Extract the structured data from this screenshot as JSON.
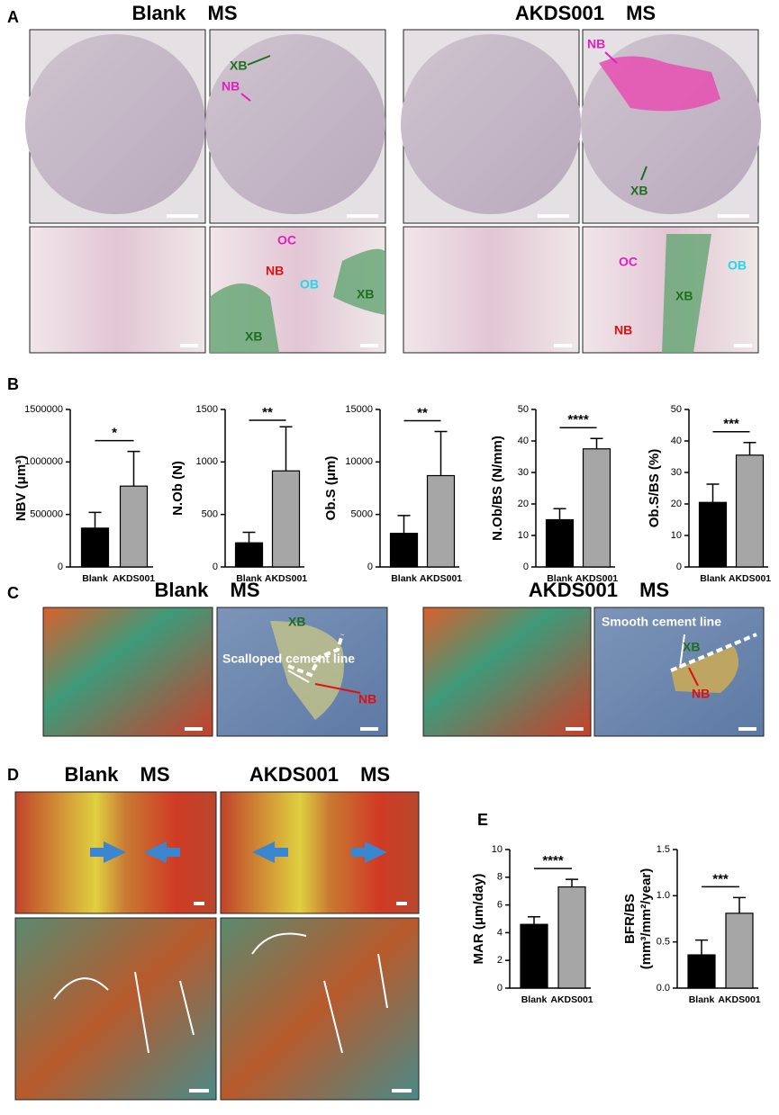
{
  "panel_labels": [
    "A",
    "B",
    "C",
    "D",
    "E"
  ],
  "titles": [
    "Blank MS",
    "AKDS001 MS",
    "Blank MS",
    "AKDS001 MS",
    "Blank MS",
    "AKDS001 MS"
  ],
  "annotations": [
    "XB",
    "NB",
    "NB",
    "XB",
    "OC",
    "NB",
    "OB",
    "XB",
    "XB",
    "OC",
    "OB",
    "XB",
    "NB",
    "XB",
    "Scalloped cement line",
    "NB",
    "Smooth cement line",
    "XB",
    "NB"
  ],
  "chart_data": [
    {
      "type": "bar",
      "ylabel": "NBV (μm³)",
      "categories": [
        "Blank",
        "AKDS001"
      ],
      "values": [
        370000,
        770000
      ],
      "errors": [
        150000,
        330000
      ],
      "colors": [
        "#000000",
        "#a6a6a6"
      ],
      "ylim": [
        0,
        1500000
      ],
      "yticks": [
        0,
        500000,
        1000000,
        1500000
      ],
      "significance": "*"
    },
    {
      "type": "bar",
      "ylabel": "N.Ob (N)",
      "categories": [
        "Blank",
        "AKDS001"
      ],
      "values": [
        230,
        915
      ],
      "errors": [
        100,
        420
      ],
      "colors": [
        "#000000",
        "#a6a6a6"
      ],
      "ylim": [
        0,
        1500
      ],
      "yticks": [
        0,
        500,
        1000,
        1500
      ],
      "significance": "**"
    },
    {
      "type": "bar",
      "ylabel": "Ob.S (μm)",
      "categories": [
        "Blank",
        "AKDS001"
      ],
      "values": [
        3200,
        8700
      ],
      "errors": [
        1700,
        4200
      ],
      "colors": [
        "#000000",
        "#a6a6a6"
      ],
      "ylim": [
        0,
        15000
      ],
      "yticks": [
        0,
        5000,
        10000,
        15000
      ],
      "significance": "**"
    },
    {
      "type": "bar",
      "ylabel": "N.Ob/BS (N/mm)",
      "categories": [
        "Blank",
        "AKDS001"
      ],
      "values": [
        15,
        37.5
      ],
      "errors": [
        3.5,
        3.3
      ],
      "colors": [
        "#000000",
        "#a6a6a6"
      ],
      "ylim": [
        0,
        50
      ],
      "yticks": [
        0,
        10,
        20,
        30,
        40,
        50
      ],
      "significance": "****"
    },
    {
      "type": "bar",
      "ylabel": "Ob.S/BS (%)",
      "categories": [
        "Blank",
        "AKDS001"
      ],
      "values": [
        20.5,
        35.5
      ],
      "errors": [
        5.8,
        4
      ],
      "colors": [
        "#000000",
        "#a6a6a6"
      ],
      "ylim": [
        0,
        50
      ],
      "yticks": [
        0,
        10,
        20,
        30,
        40,
        50
      ],
      "significance": "***"
    },
    {
      "type": "bar",
      "ylabel": "MAR (μm/day)",
      "categories": [
        "Blank",
        "AKDS001"
      ],
      "values": [
        4.6,
        7.3
      ],
      "errors": [
        0.55,
        0.55
      ],
      "colors": [
        "#000000",
        "#a6a6a6"
      ],
      "ylim": [
        0,
        10
      ],
      "yticks": [
        0,
        2,
        4,
        6,
        8,
        10
      ],
      "significance": "****"
    },
    {
      "type": "bar",
      "ylabel": [
        "BFR/BS",
        "(mm³/mm²/year)"
      ],
      "categories": [
        "Blank",
        "AKDS001"
      ],
      "values": [
        0.36,
        0.81
      ],
      "errors": [
        0.16,
        0.17
      ],
      "colors": [
        "#000000",
        "#a6a6a6"
      ],
      "ylim": [
        0,
        1.5
      ],
      "yticks": [
        {
          "value": 0,
          "label": "0.0"
        },
        0.5,
        {
          "value": 1,
          "label": "1.0"
        },
        1.5
      ],
      "significance": "***"
    }
  ]
}
